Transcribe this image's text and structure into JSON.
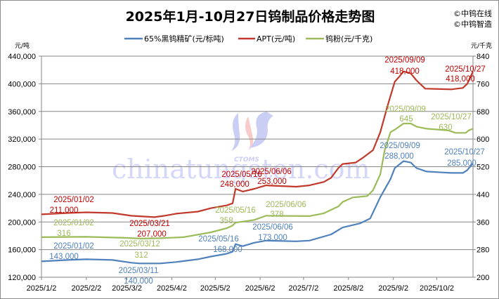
{
  "copyright": [
    "©中钨在线",
    "©中钨智造"
  ],
  "watermark": {
    "text": "chinatungsten.com",
    "logo": "CTOMS"
  },
  "colors": {
    "concentrate": "#4f81bd",
    "apt": "#c0392b",
    "powder": "#9bbb59",
    "apt_label": "#c00000"
  },
  "chart_data": {
    "type": "line",
    "title": "2025年1月-10月27日钨制品价格走势图",
    "y_left_unit": "元/吨",
    "y_right_unit": "元/千克",
    "ylim_left": [
      120000,
      440000
    ],
    "ylim_right": [
      200,
      840
    ],
    "y_left_ticks": [
      "120,000",
      "160,000",
      "200,000",
      "240,000",
      "280,000",
      "320,000",
      "360,000",
      "400,000",
      "440,000"
    ],
    "y_right_ticks": [
      "200",
      "280",
      "360",
      "440",
      "520",
      "600",
      "680",
      "760",
      "840"
    ],
    "x_ticks": [
      "2025/1/2",
      "2025/2/2",
      "2025/3/2",
      "2025/4/2",
      "2025/5/2",
      "2025/6/2",
      "2025/7/2",
      "2025/8/2",
      "2025/9/2",
      "2025/10/2"
    ],
    "x_range": [
      "2025-01-02",
      "2025-10-27"
    ],
    "grid": "horizontal",
    "legend_position": "top",
    "series": [
      {
        "name": "65%黑钨精矿(元/标吨)",
        "axis": "left",
        "color": "#4f81bd",
        "points": [
          [
            "2025-01-02",
            143000
          ],
          [
            "2025-01-20",
            145000
          ],
          [
            "2025-02-02",
            146000
          ],
          [
            "2025-02-20",
            145000
          ],
          [
            "2025-03-05",
            141000
          ],
          [
            "2025-03-11",
            140000
          ],
          [
            "2025-03-25",
            140000
          ],
          [
            "2025-04-05",
            142000
          ],
          [
            "2025-04-20",
            146000
          ],
          [
            "2025-04-29",
            150000
          ],
          [
            "2025-05-10",
            154000
          ],
          [
            "2025-05-14",
            157000
          ],
          [
            "2025-05-16",
            168000
          ],
          [
            "2025-05-21",
            165000
          ],
          [
            "2025-05-29",
            170000
          ],
          [
            "2025-06-06",
            173000
          ],
          [
            "2025-06-27",
            172000
          ],
          [
            "2025-07-06",
            173000
          ],
          [
            "2025-07-21",
            182000
          ],
          [
            "2025-07-29",
            192000
          ],
          [
            "2025-08-10",
            198000
          ],
          [
            "2025-08-17",
            205000
          ],
          [
            "2025-08-24",
            236000
          ],
          [
            "2025-08-31",
            262000
          ],
          [
            "2025-09-03",
            278000
          ],
          [
            "2025-09-09",
            288000
          ],
          [
            "2025-09-14",
            286000
          ],
          [
            "2025-09-18",
            278000
          ],
          [
            "2025-09-25",
            273000
          ],
          [
            "2025-10-12",
            271000
          ],
          [
            "2025-10-20",
            271000
          ],
          [
            "2025-10-23",
            275000
          ],
          [
            "2025-10-27",
            285000
          ]
        ]
      },
      {
        "name": "APT(元/吨)",
        "axis": "left",
        "color": "#c0392b",
        "points": [
          [
            "2025-01-02",
            211000
          ],
          [
            "2025-01-20",
            213000
          ],
          [
            "2025-02-02",
            214000
          ],
          [
            "2025-02-20",
            213000
          ],
          [
            "2025-03-05",
            209000
          ],
          [
            "2025-03-21",
            207000
          ],
          [
            "2025-03-28",
            209000
          ],
          [
            "2025-04-05",
            212000
          ],
          [
            "2025-04-20",
            215000
          ],
          [
            "2025-04-29",
            220000
          ],
          [
            "2025-05-10",
            224000
          ],
          [
            "2025-05-14",
            227000
          ],
          [
            "2025-05-16",
            248000
          ],
          [
            "2025-05-21",
            244000
          ],
          [
            "2025-05-29",
            248000
          ],
          [
            "2025-06-06",
            253000
          ],
          [
            "2025-06-27",
            251000
          ],
          [
            "2025-07-06",
            253000
          ],
          [
            "2025-07-16",
            258000
          ],
          [
            "2025-07-21",
            264000
          ],
          [
            "2025-07-26",
            278000
          ],
          [
            "2025-07-29",
            284000
          ],
          [
            "2025-08-07",
            286000
          ],
          [
            "2025-08-12",
            293000
          ],
          [
            "2025-08-19",
            304000
          ],
          [
            "2025-08-24",
            330000
          ],
          [
            "2025-08-29",
            368000
          ],
          [
            "2025-09-03",
            403000
          ],
          [
            "2025-09-06",
            410000
          ],
          [
            "2025-09-09",
            418000
          ],
          [
            "2025-09-14",
            415000
          ],
          [
            "2025-09-18",
            405000
          ],
          [
            "2025-09-24",
            393000
          ],
          [
            "2025-10-12",
            392000
          ],
          [
            "2025-10-20",
            394000
          ],
          [
            "2025-10-23",
            400000
          ],
          [
            "2025-10-27",
            418000
          ]
        ]
      },
      {
        "name": "钨粉(元/千克)",
        "axis": "right",
        "color": "#9bbb59",
        "points": [
          [
            "2025-01-02",
            316
          ],
          [
            "2025-02-02",
            317
          ],
          [
            "2025-03-01",
            314
          ],
          [
            "2025-03-12",
            312
          ],
          [
            "2025-03-25",
            313
          ],
          [
            "2025-04-10",
            316
          ],
          [
            "2025-04-29",
            330
          ],
          [
            "2025-05-10",
            342
          ],
          [
            "2025-05-14",
            350
          ],
          [
            "2025-05-16",
            358
          ],
          [
            "2025-05-29",
            366
          ],
          [
            "2025-06-06",
            378
          ],
          [
            "2025-07-06",
            377
          ],
          [
            "2025-07-16",
            385
          ],
          [
            "2025-07-26",
            405
          ],
          [
            "2025-07-29",
            418
          ],
          [
            "2025-08-05",
            431
          ],
          [
            "2025-08-15",
            435
          ],
          [
            "2025-08-19",
            452
          ],
          [
            "2025-08-24",
            498
          ],
          [
            "2025-08-27",
            567
          ],
          [
            "2025-08-31",
            620
          ],
          [
            "2025-09-04",
            630
          ],
          [
            "2025-09-09",
            645
          ],
          [
            "2025-09-14",
            645
          ],
          [
            "2025-09-18",
            636
          ],
          [
            "2025-09-25",
            630
          ],
          [
            "2025-10-10",
            625
          ],
          [
            "2025-10-15",
            618
          ],
          [
            "2025-10-22",
            618
          ],
          [
            "2025-10-24",
            625
          ],
          [
            "2025-10-27",
            630
          ]
        ]
      }
    ],
    "annotations": [
      {
        "series": "apt",
        "date": "2025/01/02",
        "value": "211,000"
      },
      {
        "series": "apt",
        "date": "2025/03/21",
        "value": "207,000"
      },
      {
        "series": "apt",
        "date": "2025/05/16",
        "value": "248,000"
      },
      {
        "series": "apt",
        "date": "2025/06/06",
        "value": "253,000"
      },
      {
        "series": "apt",
        "date": "2025/09/09",
        "value": "418,000"
      },
      {
        "series": "apt",
        "date": "2025/10/27",
        "value": "418,000"
      },
      {
        "series": "powder",
        "date": "2025/01/02",
        "value": "316"
      },
      {
        "series": "powder",
        "date": "2025/03/12",
        "value": "312"
      },
      {
        "series": "powder",
        "date": "2025/05/16",
        "value": "358"
      },
      {
        "series": "powder",
        "date": "2025/06/06",
        "value": "378"
      },
      {
        "series": "powder",
        "date": "2025/09/09",
        "value": "645"
      },
      {
        "series": "powder",
        "date": "2025/10/27",
        "value": "630"
      },
      {
        "series": "concentrate",
        "date": "2025/01/02",
        "value": "143,000"
      },
      {
        "series": "concentrate",
        "date": "2025/03/11",
        "value": "140,000"
      },
      {
        "series": "concentrate",
        "date": "2025/05/16",
        "value": "168,000"
      },
      {
        "series": "concentrate",
        "date": "2025/06/06",
        "value": "173,000"
      },
      {
        "series": "concentrate",
        "date": "2025/09/09",
        "value": "288,000"
      },
      {
        "series": "concentrate",
        "date": "2025/10/27",
        "value": "285,000"
      }
    ]
  }
}
